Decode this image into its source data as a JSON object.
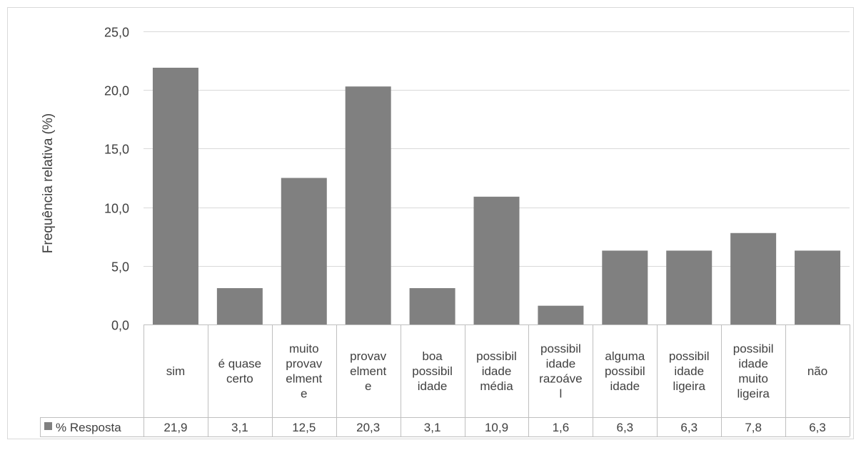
{
  "chart_data": {
    "type": "bar",
    "categories": [
      "sim",
      "é quase certo",
      "muito provavelmente",
      "provavelmente",
      "boa possibilidade",
      "possibilidade média",
      "possibilidade razoável",
      "alguma possibilidade",
      "possibilidade ligeira",
      "possibilidade muito ligeira",
      "não"
    ],
    "category_label_lines": [
      [
        "sim"
      ],
      [
        "é quase",
        "certo"
      ],
      [
        "muito",
        "provav",
        "elment",
        "e"
      ],
      [
        "provav",
        "elment",
        "e"
      ],
      [
        "boa",
        "possibil",
        "idade"
      ],
      [
        "possibil",
        "idade",
        "média"
      ],
      [
        "possibil",
        "idade",
        "razoáve",
        "l"
      ],
      [
        "alguma",
        "possibil",
        "idade"
      ],
      [
        "possibil",
        "idade",
        "ligeira"
      ],
      [
        "possibil",
        "idade",
        "muito",
        "ligeira"
      ],
      [
        "não"
      ]
    ],
    "series": [
      {
        "name": "% Resposta",
        "values": [
          21.9,
          3.1,
          12.5,
          20.3,
          3.1,
          10.9,
          1.6,
          6.3,
          6.3,
          7.8,
          6.3
        ],
        "labels": [
          "21,9",
          "3,1",
          "12,5",
          "20,3",
          "3,1",
          "10,9",
          "1,6",
          "6,3",
          "6,3",
          "7,8",
          "6,3"
        ],
        "color": "#808080"
      }
    ],
    "ylabel": "Frequência relativa (%)",
    "ylim": [
      0,
      25
    ],
    "yticks": [
      0,
      5,
      10,
      15,
      20,
      25
    ],
    "ytick_labels": [
      "0,0",
      "5,0",
      "10,0",
      "15,0",
      "20,0",
      "25,0"
    ],
    "grid": true,
    "legend": "data-table",
    "gridline_color": "#d9d9d9",
    "table_border_color": "#bfbfbf"
  }
}
